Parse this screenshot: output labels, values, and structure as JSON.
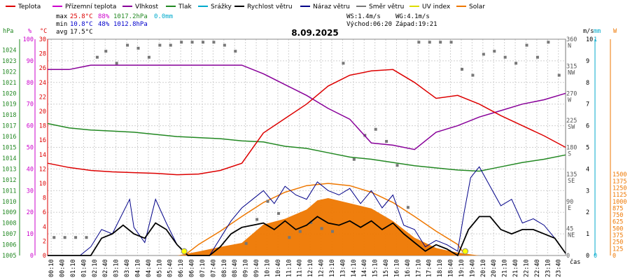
{
  "chart_data": {
    "type": "line",
    "title": "8.09.2025",
    "xlabel": "čas",
    "legend": [
      {
        "name": "Teplota",
        "color": "#dd0000"
      },
      {
        "name": "Přízemní teplota",
        "color": "#cc00cc"
      },
      {
        "name": "Vlhkost",
        "color": "#880099"
      },
      {
        "name": "Tlak",
        "color": "#228822"
      },
      {
        "name": "Srážky",
        "color": "#00aacc"
      },
      {
        "name": "Rychlost větru",
        "color": "#000000"
      },
      {
        "name": "Náraz větru",
        "color": "#000088"
      },
      {
        "name": "Směr větru",
        "color": "#777777"
      },
      {
        "name": "UV index",
        "color": "#dddd00"
      },
      {
        "name": "Solar",
        "color": "#ee7700"
      }
    ],
    "stats": {
      "max": {
        "label": "max",
        "temp": "25.8°C",
        "hum": "88%",
        "press": "1017.2hPa",
        "rain": "0.0mm"
      },
      "min": {
        "label": "min",
        "temp": "10.8°C",
        "hum": "48%",
        "press": "1012.8hPa"
      },
      "avg": {
        "label": "avg",
        "temp": "17.5°C"
      },
      "ws": "WS:1.4m/s",
      "wg": "WG:4.1m/s",
      "sunrise": "Východ:06:20",
      "sunset": "Západ:19:21"
    },
    "axes": {
      "hpa": {
        "unit": "hPa",
        "color": "#228822",
        "range": [
          1005,
          1025
        ],
        "ticks": [
          "1005",
          "1006",
          "1007",
          "1008",
          "1009",
          "1010",
          "1011",
          "1012",
          "1013",
          "1014",
          "1015",
          "1016",
          "1017",
          "1018",
          "1019",
          "1020",
          "1021",
          "1022",
          "1023",
          "1024"
        ]
      },
      "pct": {
        "unit": "%",
        "color": "#cc00cc",
        "range": [
          0,
          100
        ],
        "ticks": [
          "0",
          "10",
          "20",
          "30",
          "40",
          "50",
          "60",
          "70",
          "80",
          "90",
          "100"
        ]
      },
      "temp": {
        "unit": "°C",
        "color": "#dd0000",
        "range": [
          0,
          30
        ],
        "ticks": [
          "0",
          "2",
          "4",
          "6",
          "8",
          "10",
          "12",
          "14",
          "16",
          "18",
          "20",
          "22",
          "24",
          "26",
          "28",
          "30"
        ]
      },
      "dir": {
        "ticks": [
          [
            "0",
            ""
          ],
          [
            "45",
            "NE"
          ],
          [
            "90",
            "E"
          ],
          [
            "135",
            "SE"
          ],
          [
            "180",
            "S"
          ],
          [
            "225",
            "SW"
          ],
          [
            "270",
            "W"
          ],
          [
            "315",
            "NW"
          ],
          [
            "360",
            "N"
          ]
        ]
      },
      "ms": {
        "unit": "m/s",
        "ticks": [
          "0",
          "1",
          "2",
          "3",
          "4",
          "5",
          "6",
          "7",
          "8",
          "9",
          "10"
        ]
      },
      "mm": {
        "unit": "mm",
        "color": "#00aacc",
        "ticks": [
          "0",
          "1"
        ]
      },
      "w": {
        "unit": "W",
        "color": "#ee7700",
        "ticks": [
          "0",
          "125",
          "250",
          "375",
          "500",
          "625",
          "750",
          "875",
          "1000",
          "1125",
          "1250",
          "1375",
          "1500"
        ]
      }
    },
    "x_ticks": [
      "00:10",
      "00:40",
      "01:10",
      "01:40",
      "02:10",
      "02:40",
      "03:10",
      "03:40",
      "04:10",
      "04:40",
      "05:10",
      "05:40",
      "06:10",
      "06:40",
      "07:10",
      "07:40",
      "08:10",
      "08:40",
      "09:10",
      "09:40",
      "10:10",
      "10:40",
      "11:10",
      "11:40",
      "12:10",
      "12:40",
      "13:10",
      "13:40",
      "14:10",
      "14:40",
      "15:10",
      "15:40",
      "16:10",
      "16:40",
      "17:10",
      "17:40",
      "18:10",
      "18:40",
      "19:10",
      "19:40",
      "20:10",
      "20:40",
      "21:10",
      "21:40",
      "22:10",
      "22:40",
      "23:10",
      "23:40"
    ],
    "series": {
      "temperature": {
        "name": "Teplota",
        "x": [
          0,
          1,
          2,
          3,
          4,
          5,
          6,
          7,
          8,
          9,
          10,
          11,
          12,
          13,
          14,
          15,
          16,
          17,
          18,
          19,
          20,
          21,
          22,
          23,
          24
        ],
        "values": [
          12.8,
          12.2,
          11.8,
          11.6,
          11.5,
          11.4,
          11.2,
          11.3,
          11.8,
          12.8,
          17.0,
          19.0,
          21.0,
          23.5,
          25.0,
          25.6,
          25.8,
          24.0,
          21.8,
          22.2,
          21.0,
          19.4,
          18.0,
          16.6,
          15.0
        ]
      },
      "humidity": {
        "name": "Vlhkost",
        "x": [
          0,
          1,
          2,
          3,
          4,
          5,
          6,
          7,
          8,
          9,
          10,
          11,
          12,
          13,
          14,
          15,
          16,
          17,
          18,
          19,
          20,
          21,
          22,
          23,
          24
        ],
        "values": [
          86,
          86,
          88,
          88,
          88,
          88,
          88,
          88,
          88,
          88,
          84,
          79,
          74,
          68,
          63,
          52,
          51,
          49,
          57,
          60,
          64,
          67,
          70,
          72,
          75
        ]
      },
      "pressure": {
        "name": "Tlak",
        "x": [
          0,
          1,
          2,
          3,
          4,
          5,
          6,
          7,
          8,
          9,
          10,
          11,
          12,
          13,
          14,
          15,
          16,
          17,
          18,
          19,
          20,
          21,
          22,
          23,
          24
        ],
        "values": [
          1017.2,
          1016.8,
          1016.6,
          1016.5,
          1016.4,
          1016.2,
          1016.0,
          1015.9,
          1015.8,
          1015.6,
          1015.5,
          1015.1,
          1014.9,
          1014.5,
          1014.1,
          1013.9,
          1013.6,
          1013.3,
          1013.1,
          1012.9,
          1012.8,
          1013.2,
          1013.6,
          1013.9,
          1014.3
        ]
      },
      "solar": {
        "name": "Solar",
        "x": [
          0,
          6,
          7,
          8,
          9,
          10,
          11,
          12,
          12.5,
          13,
          14,
          15,
          16,
          17,
          18,
          19,
          20,
          24
        ],
        "values": [
          0,
          0,
          70,
          150,
          220,
          540,
          640,
          800,
          960,
          1000,
          910,
          820,
          600,
          310,
          130,
          50,
          0,
          0
        ]
      },
      "solar_clear": {
        "name": "Solar",
        "x": [
          6.33,
          7,
          8,
          9,
          10,
          11,
          12,
          13,
          14,
          15,
          16,
          17,
          18,
          19,
          19.35
        ],
        "values": [
          0,
          150,
          330,
          530,
          720,
          860,
          950,
          980,
          950,
          860,
          720,
          530,
          330,
          150,
          0
        ]
      },
      "wind_speed": {
        "name": "Rychlost větru",
        "x": [
          0,
          2,
          2.5,
          3,
          3.5,
          4,
          4.5,
          5,
          5.5,
          6,
          6.5,
          7,
          7.5,
          8,
          8.5,
          9,
          9.5,
          10,
          10.5,
          11,
          11.5,
          12,
          12.5,
          13,
          13.5,
          14,
          14.5,
          15,
          15.5,
          16,
          16.5,
          17,
          17.5,
          18,
          18.5,
          19,
          19.5,
          20,
          20.5,
          21,
          21.5,
          22,
          22.5,
          23,
          23.5,
          24
        ],
        "values": [
          0,
          0,
          0.8,
          1.0,
          1.4,
          1.0,
          0.8,
          1.5,
          1.2,
          0.5,
          0,
          0,
          0,
          0.4,
          1.0,
          1.3,
          1.4,
          1.5,
          1.2,
          1.6,
          1.2,
          1.4,
          1.8,
          1.5,
          1.4,
          1.6,
          1.3,
          1.6,
          1.2,
          1.5,
          1.0,
          0.6,
          0.2,
          0.5,
          0.3,
          0,
          1.2,
          1.8,
          1.8,
          1.2,
          1.0,
          1.2,
          1.2,
          1.0,
          0.8,
          0.1
        ]
      },
      "wind_gust": {
        "name": "Náraz větru",
        "x": [
          0,
          1.5,
          2,
          2.5,
          3,
          3.5,
          3.8,
          4,
          4.5,
          5,
          5.5,
          6,
          6.5,
          7,
          7.5,
          8,
          8.5,
          9,
          9.5,
          10,
          10.5,
          11,
          11.5,
          12,
          12.5,
          13,
          13.5,
          14,
          14.5,
          15,
          15.5,
          16,
          16.5,
          17,
          17.5,
          18,
          18.5,
          19,
          19.3,
          19.6,
          20,
          20.5,
          21,
          21.5,
          22,
          22.5,
          23,
          23.5,
          24
        ],
        "values": [
          0,
          0,
          0.4,
          1.2,
          1.0,
          2.0,
          2.6,
          1.3,
          0.6,
          2.6,
          1.5,
          0.5,
          0,
          0,
          0,
          0.8,
          1.6,
          2.2,
          2.6,
          3.0,
          2.4,
          3.2,
          2.8,
          2.6,
          3.4,
          3.0,
          2.8,
          3.1,
          2.4,
          3.0,
          2.2,
          2.8,
          1.4,
          1.2,
          0.4,
          0.7,
          0.5,
          0.2,
          2.0,
          3.6,
          4.1,
          3.2,
          2.3,
          2.6,
          1.5,
          1.7,
          1.4,
          0.8,
          0.1
        ]
      },
      "wind_dir": {
        "name": "Směr větru",
        "x": [
          0.3,
          0.8,
          1.3,
          1.8,
          2.3,
          2.7,
          3.2,
          3.7,
          4.2,
          4.7,
          5.2,
          5.7,
          6.2,
          6.7,
          7.2,
          7.7,
          8.2,
          8.7,
          9.2,
          9.7,
          10.2,
          10.7,
          11.2,
          11.7,
          12.2,
          12.7,
          13.2,
          13.7,
          14.2,
          14.7,
          15.2,
          15.7,
          16.2,
          16.7,
          17.2,
          17.7,
          18.2,
          18.7,
          19.2,
          19.7,
          20.2,
          20.7,
          21.2,
          21.7,
          22.2,
          22.7,
          23.2,
          23.7
        ],
        "values": [
          30,
          30,
          30,
          30,
          330,
          340,
          320,
          350,
          345,
          330,
          350,
          350,
          355,
          355,
          355,
          355,
          350,
          340,
          20,
          60,
          90,
          70,
          30,
          40,
          55,
          45,
          40,
          320,
          160,
          200,
          210,
          190,
          150,
          80,
          355,
          355,
          355,
          355,
          310,
          300,
          335,
          340,
          330,
          320,
          350,
          330,
          355,
          300
        ]
      }
    }
  }
}
